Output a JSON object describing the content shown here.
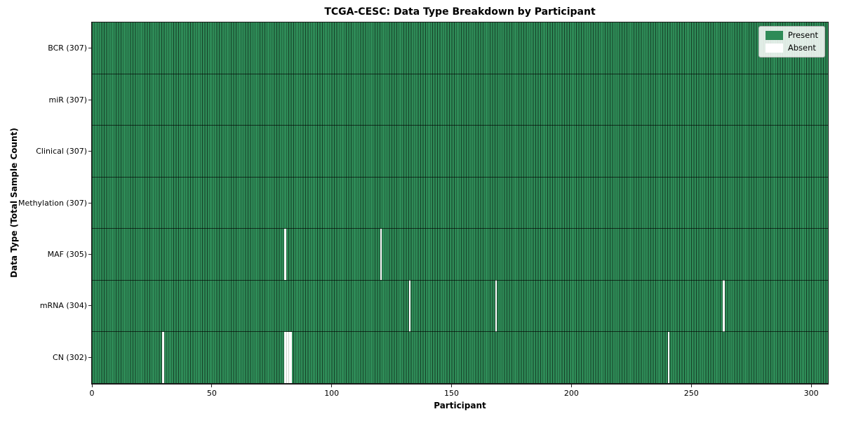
{
  "colors": {
    "present": "#2e8b57",
    "absent": "#ffffff",
    "grid_line": "rgba(0,0,0,0.55)",
    "row_separator": "rgba(0,0,0,0.65)",
    "spine": "#1a1a1a",
    "tick": "#222222",
    "legend_bg": "rgba(255,255,255,0.85)",
    "legend_border": "#b0b0b0",
    "absent_run_separator": "#c9d4c9"
  },
  "chart_data": {
    "type": "heatmap",
    "title": "TCGA-CESC: Data Type Breakdown by Participant",
    "xlabel": "Participant",
    "ylabel": "Data Type (Total Sample Count)",
    "n_participants": 307,
    "xlim": [
      0,
      307
    ],
    "x_ticks": [
      0,
      50,
      100,
      150,
      200,
      250,
      300
    ],
    "grid": true,
    "rows": [
      {
        "label": "BCR (307)",
        "data_type": "BCR",
        "total": 307,
        "absent_participants": []
      },
      {
        "label": "miR (307)",
        "data_type": "miR",
        "total": 307,
        "absent_participants": []
      },
      {
        "label": "Clinical (307)",
        "data_type": "Clinical",
        "total": 307,
        "absent_participants": []
      },
      {
        "label": "Methylation (307)",
        "data_type": "Methylation",
        "total": 307,
        "absent_participants": []
      },
      {
        "label": "MAF (305)",
        "data_type": "MAF",
        "total": 305,
        "absent_participants": [
          80,
          120
        ]
      },
      {
        "label": "mRNA (304)",
        "data_type": "mRNA",
        "total": 304,
        "absent_participants": [
          132,
          168,
          263
        ]
      },
      {
        "label": "CN (302)",
        "data_type": "CN",
        "total": 302,
        "absent_participants": [
          29,
          80,
          81,
          82,
          240
        ]
      }
    ],
    "legend": [
      {
        "label": "Present",
        "color": "#2e8b57"
      },
      {
        "label": "Absent",
        "color": "#ffffff"
      }
    ],
    "legend_position": "upper right"
  }
}
